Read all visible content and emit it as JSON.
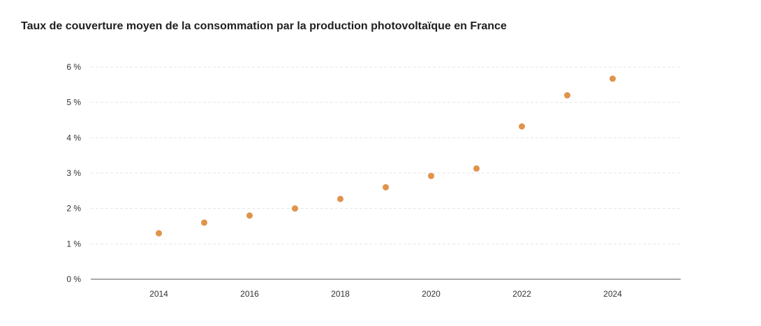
{
  "chart_data": {
    "type": "scatter",
    "title": "Taux de couverture moyen de la consommation par la production photovoltaïque en France",
    "xlabel": "",
    "ylabel": "",
    "x": [
      2014,
      2015,
      2016,
      2017,
      2018,
      2019,
      2020,
      2021,
      2022,
      2023,
      2024
    ],
    "y": [
      1.3,
      1.6,
      1.8,
      2.0,
      2.27,
      2.6,
      2.92,
      3.13,
      4.32,
      5.2,
      5.67
    ],
    "xlim": [
      2012.5,
      2025.5
    ],
    "ylim": [
      0,
      6
    ],
    "x_ticks": [
      2014,
      2016,
      2018,
      2020,
      2022,
      2024
    ],
    "x_tick_labels": [
      "2014",
      "2016",
      "2018",
      "2020",
      "2022",
      "2024"
    ],
    "y_ticks": [
      0,
      1,
      2,
      3,
      4,
      5,
      6
    ],
    "y_tick_labels": [
      "0 %",
      "1 %",
      "2 %",
      "3 %",
      "4 %",
      "5 %",
      "6 %"
    ],
    "grid": true,
    "legend": "none",
    "point_color": "#e0934a"
  }
}
